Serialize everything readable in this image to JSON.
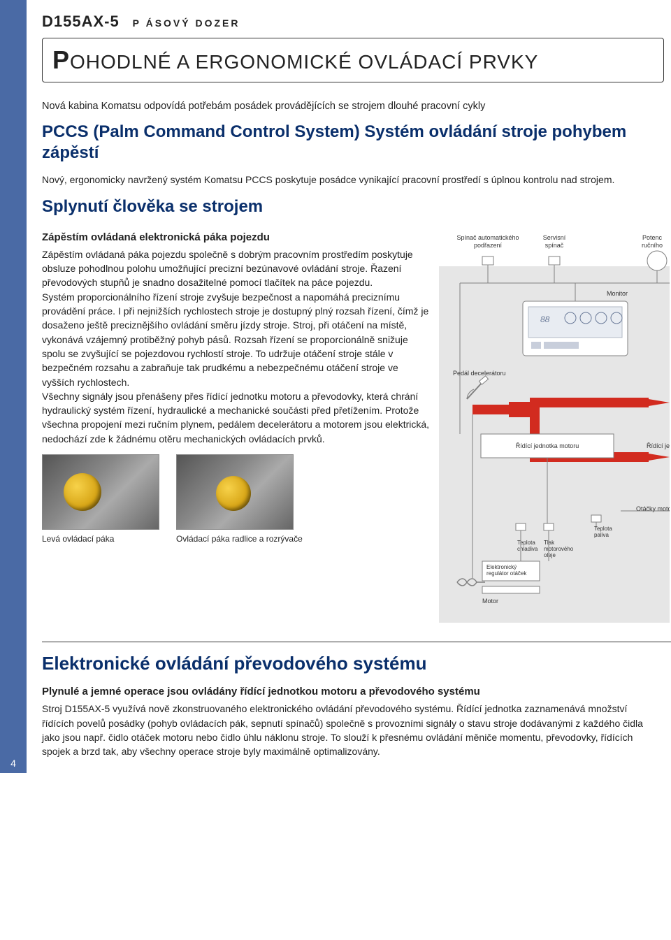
{
  "page_number": "4",
  "header": {
    "model": "D155AX-5",
    "subtype": "P ÁSOVÝ DOZER"
  },
  "title": "OHODLNÉ A ERGONOMICKÉ OVLÁDACÍ PRVKY",
  "title_cap": "P",
  "intro": "Nová kabina Komatsu odpovídá potřebám posádek provádějících se strojem dlouhé pracovní cykly",
  "h2_1": "PCCS (Palm Command Control System) Systém ovládání stroje pohybem zápěstí",
  "p1": "Nový, ergonomicky navržený systém Komatsu PCCS poskytuje posádce vynikající pracovní prostředí s úplnou kontrolu nad strojem.",
  "h2_2": "Splynutí člověka se strojem",
  "lead": "Zápěstím ovládaná elektronická páka pojezdu",
  "body": "Zápěstím ovládaná páka pojezdu společně s dobrým pracovním prostředím poskytuje obsluze pohodlnou polohu umožňující precizní bezúnavové ovládání stroje. Řazení převodových stupňů je snadno dosažitelné pomocí tlačítek na páce pojezdu.\nSystém proporcionálního řízení stroje zvyšuje bezpečnost a napomáhá preciznímu provádění práce. I při nejnižších rychlostech stroje je dostupný plný rozsah řízení, čímž je dosaženo ještě preciznějšího ovládání směru jízdy stroje. Stroj, při otáčení na místě, vykonává vzájemný protiběžný pohyb pásů. Rozsah řízení se proporcionálně snižuje spolu se zvyšující se pojezdovou rychlostí stroje. To udržuje otáčení stroje stále v bezpečném rozsahu a zabraňuje tak prudkému a nebezpečnému otáčení stroje ve vyšších rychlostech.\nVšechny signály jsou přenášeny přes řídící jednotku motoru a převodovky, která chrání hydraulický systém řízení, hydraulické a mechanické součásti před přetížením. Protože všechna propojení mezi ručním plynem, pedálem decelerátoru a motorem jsou elektrická, nedochází zde k žádnému otěru mechanických ovládacích prvků.",
  "diagram": {
    "bg": "#e6e6e6",
    "line": "#808080",
    "red": "#d22b1f",
    "box_fill": "#ffffff",
    "monitor_fill": "#e8ecf2",
    "labels": {
      "auto_shift": "Spínač automatického\npodřazení",
      "service": "Servisní\nspínač",
      "potenc": "Potenc\nručního",
      "monitor": "Monitor",
      "decel": "Pedál decelerátoru",
      "ecu": "Řídící jednotka motoru",
      "ecu2": "Řídící je",
      "rpm": "Otáčky motoru",
      "t_cool": "Teplota\nchladiva",
      "p_oil": "Tlak\nmotorového\noleje",
      "t_fuel": "Teplota\npaliva",
      "ereg": "Elektronický\nregulátor otáček",
      "motor": "Motor"
    }
  },
  "captions": {
    "left": "Levá ovládací páka",
    "right": "Ovládací páka radlice a rozrývače"
  },
  "h2_3": "Elektronické ovládání převodového systému",
  "lead2": "Plynulé a jemné operace jsou ovládány řídící jednotkou motoru a převodového systému",
  "body2": "Stroj D155AX-5 využívá nově zkonstruovaného elektronického ovládání převodového systému. Řídící jednotka zaznamenává množství řídících povelů posádky (pohyb ovládacích pák, sepnutí spínačů) společně s provozními signály o stavu stroje dodávanými z každého čidla jako jsou např. čidlo otáček motoru nebo čidlo úhlu náklonu stroje. To slouží k přesnému ovládání měniče momentu, převodovky, řídících spojek a brzd tak, aby všechny operace stroje byly maximálně optimalizovány."
}
